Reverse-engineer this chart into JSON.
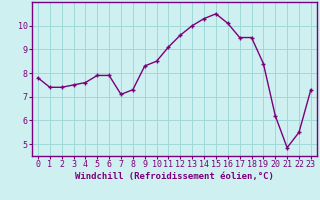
{
  "x": [
    0,
    1,
    2,
    3,
    4,
    5,
    6,
    7,
    8,
    9,
    10,
    11,
    12,
    13,
    14,
    15,
    16,
    17,
    18,
    19,
    20,
    21,
    22,
    23
  ],
  "y": [
    7.8,
    7.4,
    7.4,
    7.5,
    7.6,
    7.9,
    7.9,
    7.1,
    7.3,
    8.3,
    8.5,
    9.1,
    9.6,
    10.0,
    10.3,
    10.5,
    10.1,
    9.5,
    9.5,
    8.4,
    6.2,
    4.85,
    5.5,
    7.3
  ],
  "line_color": "#7B007B",
  "marker": "+",
  "markersize": 3,
  "markeredgewidth": 1.0,
  "linewidth": 1.0,
  "background_color": "#cff0f0",
  "grid_color": "#a0d8d8",
  "xlabel": "Windchill (Refroidissement éolien,°C)",
  "xlabel_color": "#7B007B",
  "xlabel_fontsize": 6.5,
  "xlim": [
    -0.5,
    23.5
  ],
  "ylim": [
    4.5,
    11.0
  ],
  "yticks": [
    5,
    6,
    7,
    8,
    9,
    10
  ],
  "xticks": [
    0,
    1,
    2,
    3,
    4,
    5,
    6,
    7,
    8,
    9,
    10,
    11,
    12,
    13,
    14,
    15,
    16,
    17,
    18,
    19,
    20,
    21,
    22,
    23
  ],
  "tick_color": "#7B007B",
  "tick_fontsize": 6.0,
  "spine_color": "#7B007B",
  "spine_linewidth": 1.0
}
